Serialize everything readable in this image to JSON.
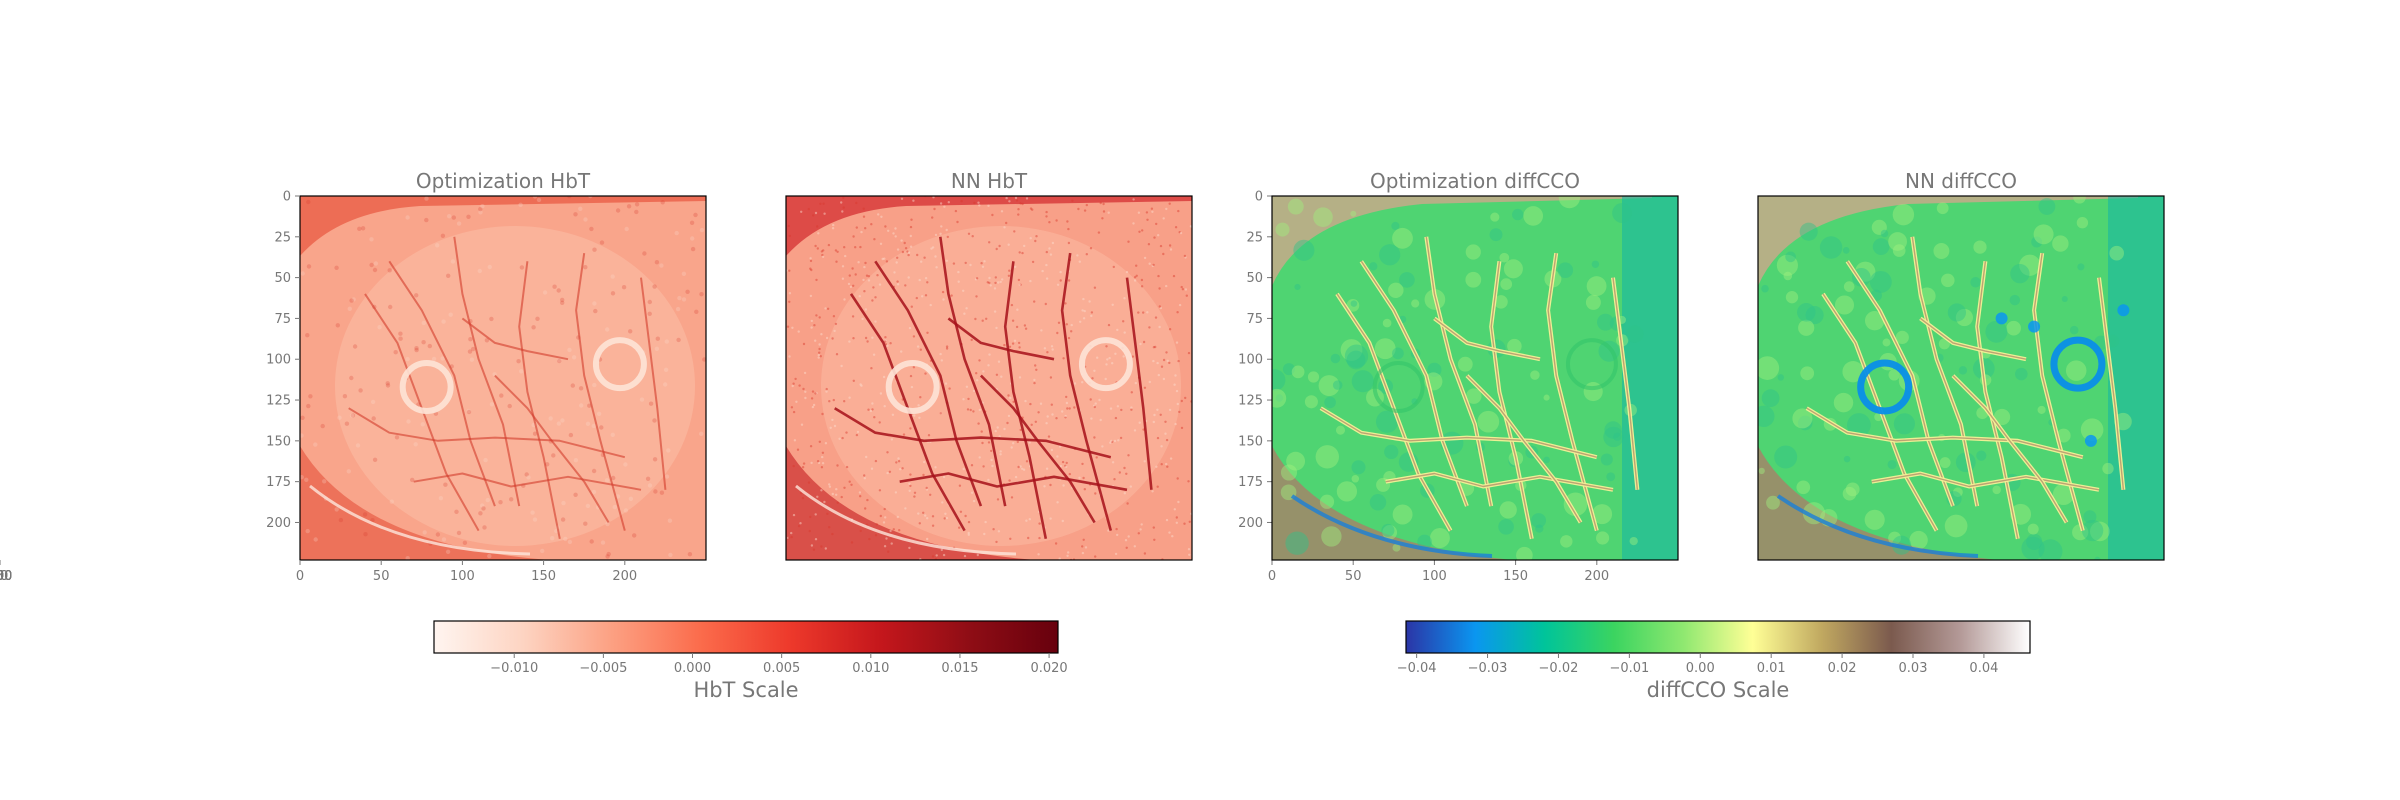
{
  "chart_data": {
    "type": "heatmap",
    "panels": [
      {
        "title": "Optimization HbT",
        "scale": "hbt",
        "variant": "opt"
      },
      {
        "title": "NN HbT",
        "scale": "hbt",
        "variant": "nn"
      },
      {
        "title": "Optimization diffCCO",
        "scale": "cco",
        "variant": "opt"
      },
      {
        "title": "NN diffCCO",
        "scale": "cco",
        "variant": "nn"
      }
    ],
    "x_ticks": [
      "0",
      "50",
      "100",
      "150",
      "200"
    ],
    "y_ticks": [
      "0",
      "25",
      "50",
      "75",
      "100",
      "125",
      "150",
      "175",
      "200"
    ],
    "x_range": [
      0,
      250
    ],
    "y_range": [
      0,
      223
    ],
    "colorbars": [
      {
        "label": "HbT Scale",
        "range": [
          -0.0145,
          0.0205
        ],
        "ticks": [
          -0.01,
          -0.005,
          0.0,
          0.005,
          0.01,
          0.015,
          0.02
        ],
        "tick_labels": [
          "−0.010",
          "−0.005",
          "0.000",
          "0.005",
          "0.010",
          "0.015",
          "0.020"
        ],
        "colors": [
          "#fff5f0",
          "#fdd4c2",
          "#fca082",
          "#fb6b4b",
          "#ed392b",
          "#c5171c",
          "#8f0d15",
          "#67000d"
        ]
      },
      {
        "label": "diffCCO Scale",
        "range": [
          -0.0415,
          0.0465
        ],
        "ticks": [
          -0.04,
          -0.03,
          -0.02,
          -0.01,
          0.0,
          0.01,
          0.02,
          0.03,
          0.04
        ],
        "tick_labels": [
          "−0.04",
          "−0.03",
          "−0.02",
          "−0.01",
          "0.00",
          "0.01",
          "0.02",
          "0.03",
          "0.04"
        ],
        "colors": [
          "#2b35a6",
          "#0a96f0",
          "#00c49a",
          "#3bd460",
          "#8fe870",
          "#ffff96",
          "#c0a860",
          "#7b5a4e",
          "#b49a98",
          "#ffffff"
        ]
      }
    ]
  }
}
